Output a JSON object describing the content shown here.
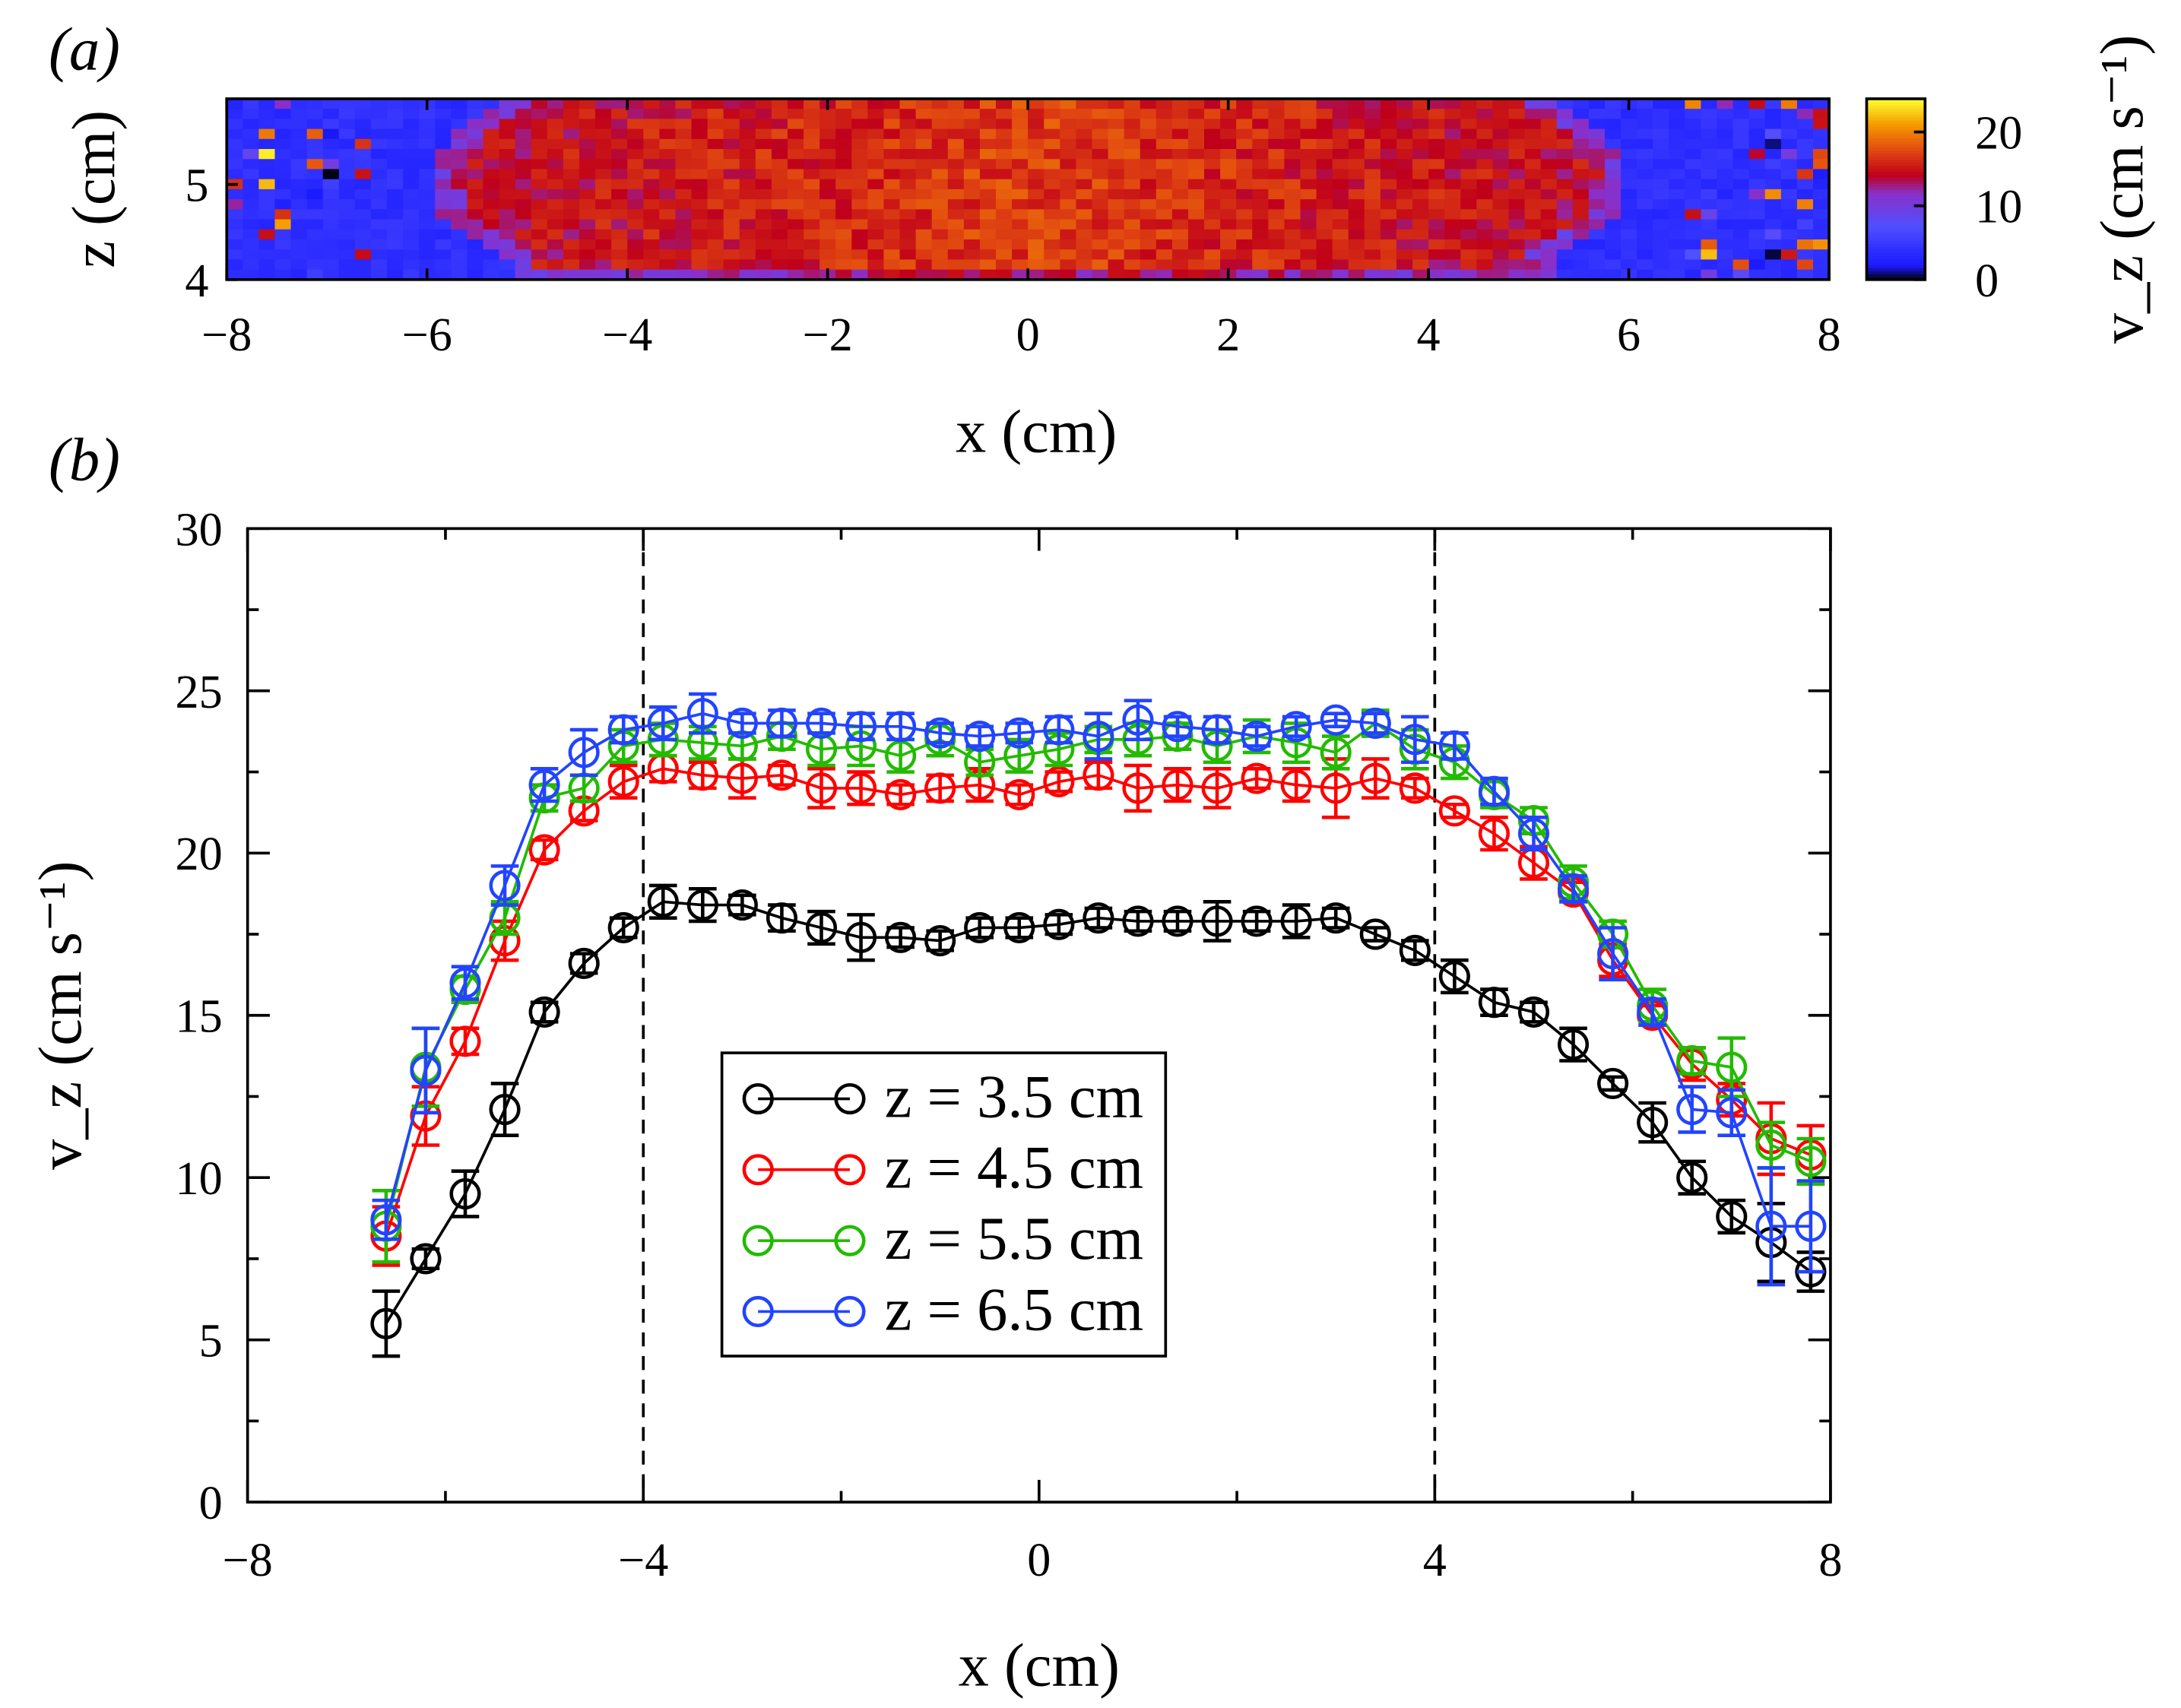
{
  "chart_data": [
    {
      "panel_label": "(a)",
      "type": "heatmap",
      "xlabel": "x (cm)",
      "ylabel": "z (cm)",
      "xlim": [
        -8,
        8
      ],
      "ylim": [
        4,
        5.9
      ],
      "xticks": [
        "−8",
        "−6",
        "−4",
        "−2",
        "0",
        "2",
        "4",
        "6",
        "8"
      ],
      "xtick_values": [
        -8,
        -6,
        -4,
        -2,
        0,
        2,
        4,
        6,
        8
      ],
      "yticks": [
        "4",
        "5"
      ],
      "ytick_values": [
        4,
        5
      ],
      "colorbar": {
        "label": "v_z (cm s⁻¹)",
        "range": [
          0,
          24.5
        ],
        "ticks": [
          "0",
          "10",
          "20"
        ],
        "tick_values": [
          0,
          10,
          20
        ],
        "colormap": [
          "#000000",
          "#1a1aff",
          "#5050ff",
          "#8a2fc8",
          "#c0001a",
          "#e24a10",
          "#f59a00",
          "#ffff30"
        ]
      }
    },
    {
      "panel_label": "(b)",
      "type": "line",
      "xlabel": "x (cm)",
      "ylabel": "v_z (cm s⁻¹)",
      "xlim": [
        -8,
        8
      ],
      "ylim": [
        0,
        30
      ],
      "grid": false,
      "legend_position": "center-left",
      "xticks": [
        "−8",
        "−4",
        "0",
        "4",
        "8"
      ],
      "xtick_values": [
        -8,
        -4,
        0,
        4,
        8
      ],
      "yticks": [
        "0",
        "5",
        "10",
        "15",
        "20",
        "25",
        "30"
      ],
      "ytick_values": [
        0,
        5,
        10,
        15,
        20,
        25,
        30
      ],
      "vlines": [
        -4,
        4
      ],
      "x": [
        -6.6,
        -6.2,
        -5.8,
        -5.4,
        -5.0,
        -4.6,
        -4.2,
        -3.8,
        -3.4,
        -3.0,
        -2.6,
        -2.2,
        -1.8,
        -1.4,
        -1.0,
        -0.6,
        -0.2,
        0.2,
        0.6,
        1.0,
        1.4,
        1.8,
        2.2,
        2.6,
        3.0,
        3.4,
        3.8,
        4.2,
        4.6,
        5.0,
        5.4,
        5.8,
        6.2,
        6.6,
        7.0,
        7.4,
        7.8
      ],
      "series": [
        {
          "name": "z = 3.5 cm",
          "color": "#000000",
          "values": [
            5.5,
            7.5,
            9.5,
            12.1,
            15.1,
            16.6,
            17.7,
            18.5,
            18.4,
            18.4,
            18.0,
            17.7,
            17.4,
            17.4,
            17.3,
            17.7,
            17.7,
            17.8,
            18.0,
            17.9,
            17.9,
            17.9,
            17.9,
            17.9,
            18.0,
            17.5,
            17.0,
            16.2,
            15.4,
            15.1,
            14.1,
            12.9,
            11.7,
            10.0,
            8.8,
            8.0,
            7.1
          ],
          "errors": [
            1.0,
            0.3,
            0.7,
            0.8,
            0.3,
            0.3,
            0.3,
            0.5,
            0.5,
            0.3,
            0.4,
            0.5,
            0.7,
            0.3,
            0.3,
            0.3,
            0.3,
            0.3,
            0.3,
            0.3,
            0.3,
            0.6,
            0.3,
            0.5,
            0.3,
            0.2,
            0.3,
            0.5,
            0.4,
            0.3,
            0.5,
            0.2,
            0.6,
            0.5,
            0.5,
            1.2,
            0.6
          ]
        },
        {
          "name": "z = 4.5 cm",
          "color": "#ff0000",
          "values": [
            8.2,
            11.9,
            14.2,
            17.3,
            20.1,
            21.3,
            22.2,
            22.6,
            22.4,
            22.3,
            22.4,
            22.0,
            22.0,
            21.8,
            22.0,
            22.1,
            21.8,
            22.2,
            22.4,
            22.0,
            22.1,
            22.0,
            22.3,
            22.1,
            22.0,
            22.3,
            22.0,
            21.3,
            20.6,
            19.7,
            18.8,
            16.7,
            15.0,
            13.5,
            12.4,
            11.2,
            10.7
          ],
          "errors": [
            0.9,
            0.9,
            0.4,
            0.6,
            0.3,
            0.3,
            0.5,
            0.4,
            0.4,
            0.6,
            0.3,
            0.6,
            0.5,
            0.3,
            0.4,
            0.5,
            0.3,
            0.3,
            0.4,
            0.7,
            0.5,
            0.6,
            0.3,
            0.5,
            0.9,
            0.6,
            0.3,
            0.2,
            0.5,
            0.5,
            0.3,
            0.5,
            0.3,
            0.5,
            0.5,
            1.1,
            0.9
          ]
        },
        {
          "name": "z = 5.5 cm",
          "color": "#22bb00",
          "values": [
            8.5,
            13.4,
            15.8,
            18.0,
            21.7,
            22.0,
            23.3,
            23.5,
            23.4,
            23.3,
            23.6,
            23.2,
            23.3,
            23.0,
            23.5,
            22.8,
            23.0,
            23.2,
            23.5,
            23.5,
            23.6,
            23.3,
            23.6,
            23.4,
            23.1,
            24.0,
            23.2,
            22.8,
            21.8,
            21.0,
            19.1,
            17.5,
            15.3,
            13.6,
            13.4,
            11.0,
            10.5
          ],
          "errors": [
            1.1,
            1.2,
            0.4,
            0.5,
            0.4,
            0.4,
            0.5,
            0.5,
            0.5,
            0.4,
            0.4,
            0.5,
            0.6,
            0.5,
            0.5,
            0.4,
            0.5,
            0.5,
            0.4,
            0.5,
            0.4,
            0.5,
            0.5,
            0.6,
            0.5,
            0.4,
            0.6,
            0.5,
            0.4,
            0.4,
            0.5,
            0.4,
            0.5,
            0.4,
            0.9,
            0.7,
            0.7
          ]
        },
        {
          "name": "z = 6.5 cm",
          "color": "#2244ff",
          "values": [
            8.7,
            13.3,
            16.0,
            19.0,
            22.1,
            23.1,
            23.8,
            24.0,
            24.3,
            24.0,
            24.0,
            24.0,
            23.9,
            23.9,
            23.7,
            23.6,
            23.7,
            23.8,
            23.6,
            24.1,
            23.9,
            23.8,
            23.6,
            23.9,
            24.1,
            24.0,
            23.5,
            23.3,
            21.9,
            20.6,
            18.9,
            16.9,
            15.1,
            12.1,
            12.0,
            8.5,
            8.5
          ],
          "errors": [
            0.6,
            1.3,
            0.5,
            0.6,
            0.5,
            0.7,
            0.4,
            0.5,
            0.6,
            0.3,
            0.4,
            0.3,
            0.4,
            0.4,
            0.3,
            0.3,
            0.3,
            0.4,
            0.7,
            0.6,
            0.3,
            0.4,
            0.3,
            0.3,
            0.2,
            0.3,
            0.7,
            0.4,
            0.4,
            0.5,
            0.4,
            0.8,
            0.4,
            0.7,
            0.7,
            1.8,
            1.4
          ]
        }
      ]
    }
  ]
}
